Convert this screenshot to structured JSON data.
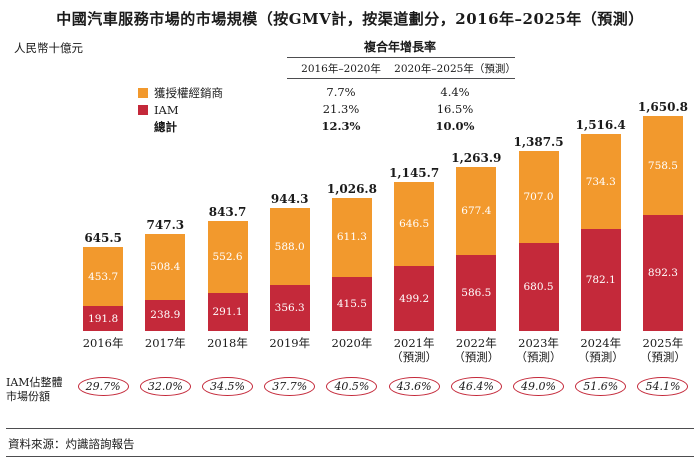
{
  "title": "中國汽車服務市場的市場規模（按GMV計，按渠道劃分，2016年–2025年（預測）",
  "unit_label": "人民幣十億元",
  "cagr_table": {
    "title": "複合年增長率",
    "columns": [
      "2016年–2020年",
      "2020年–2025年（預測）"
    ],
    "rows": [
      {
        "label": "獲授權經銷商",
        "values": [
          "7.7%",
          "4.4%"
        ],
        "bold": false
      },
      {
        "label": "IAM",
        "values": [
          "21.3%",
          "16.5%"
        ],
        "bold": false
      },
      {
        "label": "總計",
        "values": [
          "12.3%",
          "10.0%"
        ],
        "bold": true
      }
    ]
  },
  "legend": {
    "items": [
      {
        "label": "獲授權經銷商",
        "key": "authorized-dealer",
        "color": "#F2992D"
      },
      {
        "label": "IAM",
        "key": "iam",
        "color": "#C4293A"
      },
      {
        "label": "總計",
        "key": "total",
        "color": null
      }
    ]
  },
  "chart_data": {
    "type": "bar",
    "stacked": true,
    "ylabel": "人民幣十億元",
    "categories": [
      [
        "2016年"
      ],
      [
        "2017年"
      ],
      [
        "2018年"
      ],
      [
        "2019年"
      ],
      [
        "2020年"
      ],
      [
        "2021年",
        "（預測）"
      ],
      [
        "2022年",
        "（預測）"
      ],
      [
        "2023年",
        "（預測）"
      ],
      [
        "2024年",
        "（預測）"
      ],
      [
        "2025年",
        "（預測）"
      ]
    ],
    "series": [
      {
        "name": "IAM",
        "key": "iam",
        "color": "#C4293A",
        "values": [
          191.8,
          238.9,
          291.1,
          356.3,
          415.5,
          499.2,
          586.5,
          680.5,
          782.1,
          892.3
        ]
      },
      {
        "name": "獲授權經銷商",
        "key": "authorized-dealer",
        "color": "#F2992D",
        "values": [
          453.7,
          508.4,
          552.6,
          588.0,
          611.3,
          646.5,
          677.4,
          707.0,
          734.3,
          758.5
        ]
      }
    ],
    "totals": [
      645.5,
      747.3,
      843.7,
      944.3,
      1026.8,
      1145.7,
      1263.9,
      1387.5,
      1516.4,
      1650.8
    ],
    "totals_display": [
      "645.5",
      "747.3",
      "843.7",
      "944.3",
      "1,026.8",
      "1,145.7",
      "1,263.9",
      "1,387.5",
      "1,516.4",
      "1,650.8"
    ],
    "iam_share": [
      "29.7%",
      "32.0%",
      "34.5%",
      "37.7%",
      "40.5%",
      "43.6%",
      "46.4%",
      "49.0%",
      "51.6%",
      "54.1%"
    ],
    "ylim": [
      0,
      1700
    ]
  },
  "iam_share_label": {
    "line1": "IAM佔整體",
    "line2": "市場份額"
  },
  "source": "資料來源：灼識諮詢報告"
}
